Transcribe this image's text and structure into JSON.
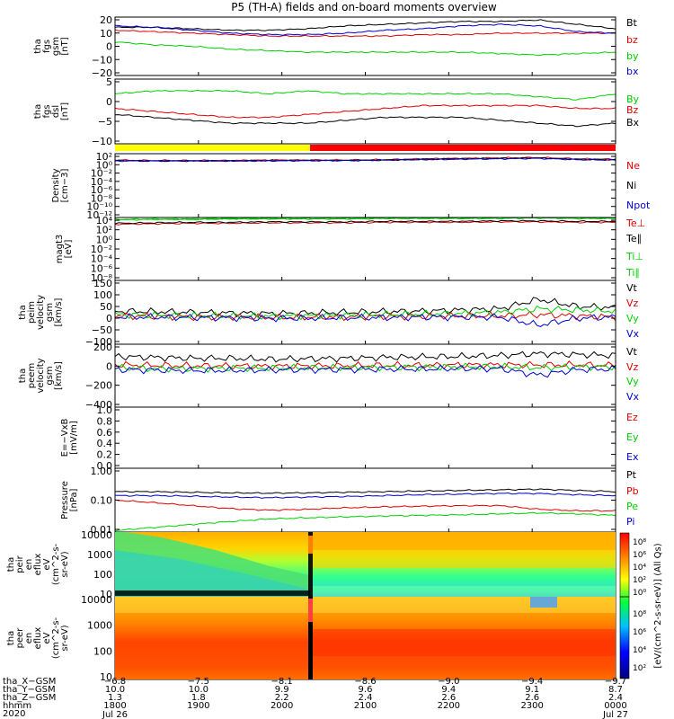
{
  "title": "P5 (TH-A) fields and on-board moments overview",
  "colors": {
    "black": "#000000",
    "red": "#e00000",
    "green": "#00d000",
    "blue": "#0000d0",
    "yellow": "#ffff00",
    "mode_red": "#ff0000"
  },
  "chart_data": [
    {
      "type": "line",
      "id": "fgs_gsm",
      "ylabel": [
        "tha",
        "fgs",
        "gsm",
        "[nT]"
      ],
      "yticks": [
        "20",
        "10",
        "0",
        "−10",
        "−20"
      ],
      "ylim": [
        -20,
        20
      ],
      "log": false,
      "series": [
        {
          "name": "Bt",
          "color": "#000000",
          "values": [
            13,
            13,
            12,
            11,
            11,
            12,
            14,
            15,
            16,
            17,
            17,
            18,
            15,
            12
          ]
        },
        {
          "name": "bz",
          "color": "#e00000",
          "values": [
            11,
            10,
            9,
            8,
            7,
            7,
            7,
            7,
            8,
            8,
            9,
            9,
            9,
            9
          ]
        },
        {
          "name": "by",
          "color": "#00d000",
          "values": [
            3,
            1,
            0,
            -2,
            -3,
            -4,
            -4,
            -4,
            -4,
            -4,
            -5,
            -6,
            -5,
            -4
          ]
        },
        {
          "name": "bx",
          "color": "#0000d0",
          "values": [
            14,
            13,
            11,
            9,
            8,
            8,
            9,
            11,
            12,
            14,
            15,
            14,
            10,
            9
          ]
        }
      ]
    },
    {
      "type": "line",
      "id": "fgs_dsl",
      "ylabel": [
        "tha",
        "fgs",
        "dsl",
        "[nT]"
      ],
      "yticks": [
        "5",
        "0",
        "−5",
        "−10"
      ],
      "ylim": [
        -13,
        9
      ],
      "log": false,
      "series": [
        {
          "name": "By",
          "color": "#00d000",
          "values": [
            4,
            5,
            5,
            5,
            4,
            5,
            4,
            4,
            4,
            4,
            4,
            3,
            2,
            4
          ]
        },
        {
          "name": "Bz",
          "color": "#e00000",
          "values": [
            -1,
            -2,
            -3,
            -4,
            -4,
            -3,
            -2,
            -1,
            0,
            0,
            0,
            0,
            -1,
            -1
          ]
        },
        {
          "name": "Bx",
          "color": "#000000",
          "values": [
            -3,
            -4,
            -5,
            -6,
            -6,
            -6,
            -5,
            -4,
            -4,
            -4,
            -5,
            -6,
            -7,
            -6
          ]
        }
      ]
    },
    {
      "type": "line",
      "id": "density",
      "ylabel": [
        "Density",
        "[cm−3]"
      ],
      "yticks": [
        "10²",
        "10⁰",
        "10⁻²",
        "10⁻⁴",
        "10⁻⁶",
        "10⁻⁸",
        "10⁻¹⁰",
        "10⁻¹²"
      ],
      "ylim": [
        -13,
        2
      ],
      "log": true,
      "series": [
        {
          "name": "Ne",
          "color": "#e00000",
          "values": [
            0.5,
            0.4,
            0.4,
            0.4,
            0.5,
            0.5,
            0.5,
            0.6,
            0.8,
            0.9,
            1.0,
            1.1,
            0.8,
            0.7
          ]
        },
        {
          "name": "Ni",
          "color": "#000000",
          "values": [
            0.4,
            0.3,
            0.3,
            0.3,
            0.4,
            0.4,
            0.4,
            0.5,
            0.7,
            0.8,
            0.9,
            1.0,
            0.7,
            0.6
          ]
        },
        {
          "name": "Npot",
          "color": "#0000d0",
          "values": [
            0.3,
            0.3,
            0.3,
            0.3,
            0.3,
            0.4,
            0.4,
            0.5,
            0.6,
            0.7,
            0.8,
            0.9,
            0.6,
            0.5
          ]
        }
      ]
    },
    {
      "type": "line",
      "id": "temperature",
      "ylabel": [
        "magt3",
        "[eV]"
      ],
      "yticks": [
        "10⁴",
        "10²",
        "10⁰",
        "10⁻²",
        "10⁻⁴",
        "10⁻⁶",
        "10⁻⁸"
      ],
      "ylim": [
        -9,
        4
      ],
      "log": true,
      "series": [
        {
          "name": "Te⊥",
          "color": "#e00000",
          "values": [
            2.6,
            2.7,
            2.8,
            2.8,
            2.9,
            2.9,
            2.9,
            3.0,
            3.0,
            3.0,
            3.1,
            3.1,
            3.0,
            3.0
          ]
        },
        {
          "name": "Te∥",
          "color": "#000000",
          "values": [
            2.8,
            2.9,
            3.0,
            3.0,
            3.1,
            3.1,
            3.1,
            3.2,
            3.2,
            3.2,
            3.3,
            3.3,
            3.2,
            3.2
          ]
        },
        {
          "name": "Ti⊥",
          "color": "#00d000",
          "values": [
            3.6,
            3.7,
            3.7,
            3.8,
            3.8,
            3.8,
            3.8,
            3.9,
            3.9,
            3.9,
            3.9,
            4.0,
            3.9,
            3.9
          ]
        },
        {
          "name": "Ti∥",
          "color": "#00d000",
          "values": [
            3.5,
            3.6,
            3.6,
            3.7,
            3.7,
            3.7,
            3.7,
            3.8,
            3.8,
            3.8,
            3.8,
            3.9,
            3.8,
            3.8
          ]
        }
      ]
    },
    {
      "type": "line",
      "id": "peim_velocity",
      "ylabel": [
        "tha",
        "peim",
        "velocity",
        "gsm",
        "[km/s]"
      ],
      "yticks": [
        "150",
        "100",
        "50",
        "0",
        "−50",
        "−100"
      ],
      "ylim": [
        -110,
        160
      ],
      "log": false,
      "series": [
        {
          "name": "Vt",
          "color": "#000000",
          "values": [
            30,
            28,
            25,
            22,
            20,
            22,
            25,
            28,
            30,
            35,
            40,
            80,
            50,
            45
          ]
        },
        {
          "name": "Vz",
          "color": "#e00000",
          "values": [
            10,
            8,
            5,
            5,
            3,
            5,
            5,
            8,
            8,
            10,
            10,
            15,
            10,
            5
          ]
        },
        {
          "name": "Vy",
          "color": "#00d000",
          "values": [
            15,
            12,
            10,
            10,
            8,
            10,
            12,
            15,
            18,
            20,
            25,
            40,
            35,
            30
          ]
        },
        {
          "name": "Vx",
          "color": "#0000d0",
          "values": [
            5,
            5,
            3,
            2,
            0,
            0,
            2,
            3,
            5,
            5,
            5,
            -30,
            0,
            5
          ]
        }
      ]
    },
    {
      "type": "line",
      "id": "peem_velocity",
      "ylabel": [
        "tha",
        "peem",
        "velocity",
        "gsm",
        "[km/s]"
      ],
      "yticks": [
        "200",
        "0",
        "−200",
        "−400"
      ],
      "ylim": [
        -420,
        250
      ],
      "log": false,
      "series": [
        {
          "name": "Vt",
          "color": "#000000",
          "values": [
            120,
            110,
            100,
            100,
            90,
            95,
            100,
            110,
            115,
            120,
            130,
            150,
            140,
            130
          ]
        },
        {
          "name": "Vz",
          "color": "#e00000",
          "values": [
            30,
            25,
            20,
            20,
            15,
            20,
            20,
            25,
            25,
            30,
            30,
            30,
            30,
            25
          ]
        },
        {
          "name": "Vy",
          "color": "#00d000",
          "values": [
            0,
            -10,
            -10,
            -5,
            -5,
            0,
            0,
            5,
            5,
            10,
            10,
            0,
            10,
            10
          ]
        },
        {
          "name": "Vx",
          "color": "#0000d0",
          "values": [
            -20,
            -25,
            -30,
            -30,
            -25,
            -20,
            -20,
            -15,
            -15,
            -10,
            -10,
            -80,
            -20,
            -15
          ]
        }
      ]
    },
    {
      "type": "line",
      "id": "efield",
      "ylabel": [
        "E=−VxB",
        "[mV/m]"
      ],
      "yticks": [
        "1.0",
        "0.8",
        "0.6",
        "0.4",
        "0.2",
        "0.0"
      ],
      "ylim": [
        0,
        1
      ],
      "log": false,
      "series": [
        {
          "name": "Ez",
          "color": "#e00000",
          "values": []
        },
        {
          "name": "Ey",
          "color": "#00d000",
          "values": []
        },
        {
          "name": "Ex",
          "color": "#0000d0",
          "values": []
        }
      ]
    },
    {
      "type": "line",
      "id": "pressure",
      "ylabel": [
        "Pressure",
        "[nPa]"
      ],
      "yticks": [
        "1.00",
        "0.10",
        "0.01"
      ],
      "ylim": [
        -2.05,
        0.05
      ],
      "log": true,
      "series": [
        {
          "name": "Pt",
          "color": "#000000",
          "values": [
            -0.72,
            -0.72,
            -0.74,
            -0.76,
            -0.77,
            -0.76,
            -0.74,
            -0.72,
            -0.7,
            -0.68,
            -0.66,
            -0.64,
            -0.68,
            -0.72
          ]
        },
        {
          "name": "Pb",
          "color": "#e00000",
          "values": [
            -1.0,
            -1.08,
            -1.18,
            -1.28,
            -1.33,
            -1.3,
            -1.25,
            -1.22,
            -1.2,
            -1.18,
            -1.18,
            -1.3,
            -1.35,
            -1.35
          ]
        },
        {
          "name": "Pe",
          "color": "#00d000",
          "values": [
            -2.0,
            -1.9,
            -1.8,
            -1.7,
            -1.62,
            -1.58,
            -1.55,
            -1.52,
            -1.5,
            -1.48,
            -1.45,
            -1.42,
            -1.45,
            -1.5
          ]
        },
        {
          "name": "Pi",
          "color": "#0000d0",
          "values": [
            -0.85,
            -0.85,
            -0.87,
            -0.9,
            -0.92,
            -0.9,
            -0.88,
            -0.85,
            -0.82,
            -0.8,
            -0.78,
            -0.78,
            -0.82,
            -0.85
          ]
        }
      ]
    },
    {
      "type": "heatmap",
      "id": "peir_eflux",
      "ylabel": [
        "tha",
        "peir",
        "en",
        "eflux",
        "eV",
        "(cm^2-s-",
        "sr-eV)"
      ],
      "yticks": [
        "10000",
        "1000",
        "100",
        "10"
      ],
      "ylim": [
        0.7,
        4.3
      ],
      "log": true
    },
    {
      "type": "heatmap",
      "id": "peer_eflux",
      "ylabel": [
        "tha",
        "peer",
        "en",
        "eflux",
        "eV",
        "(cm^2-s-",
        "sr-eV)"
      ],
      "yticks": [
        "10000",
        "1000",
        "100",
        "10"
      ],
      "ylim": [
        0.7,
        4.3
      ],
      "log": true
    }
  ],
  "colorbar": {
    "label": "[eV/(cm^2-s-sr-eV)] (All Qs)",
    "ticks_upper": [
      "10⁸",
      "10⁶",
      "10⁴",
      "10²",
      "10⁰"
    ],
    "ticks_lower": [
      "10⁸",
      "10⁶",
      "10⁴",
      "10²"
    ]
  },
  "x_axis": {
    "tick_positions": [
      1800,
      1900,
      2000,
      2100,
      2200,
      2300,
      2400
    ],
    "row_labels": [
      "tha_X−GSM",
      "tha_Y−GSM",
      "tha_Z−GSM",
      "hhmm",
      "2020"
    ],
    "columns": [
      [
        "−6.8",
        "10.0",
        "1.3",
        "1800",
        "Jul 26"
      ],
      [
        "−7.5",
        "10.0",
        "1.8",
        "1900",
        ""
      ],
      [
        "−8.1",
        "9.9",
        "2.2",
        "2000",
        ""
      ],
      [
        "−8.6",
        "9.6",
        "2.4",
        "2100",
        ""
      ],
      [
        "−9.0",
        "9.4",
        "2.6",
        "2200",
        ""
      ],
      [
        "−9.4",
        "9.1",
        "2.6",
        "2300",
        ""
      ],
      [
        "−9.7",
        "8.7",
        "2.4",
        "0000",
        "Jul 27"
      ]
    ]
  },
  "mode_bar": {
    "description": "yellow until ~2017, red afterwards",
    "switch_time": 2017
  }
}
